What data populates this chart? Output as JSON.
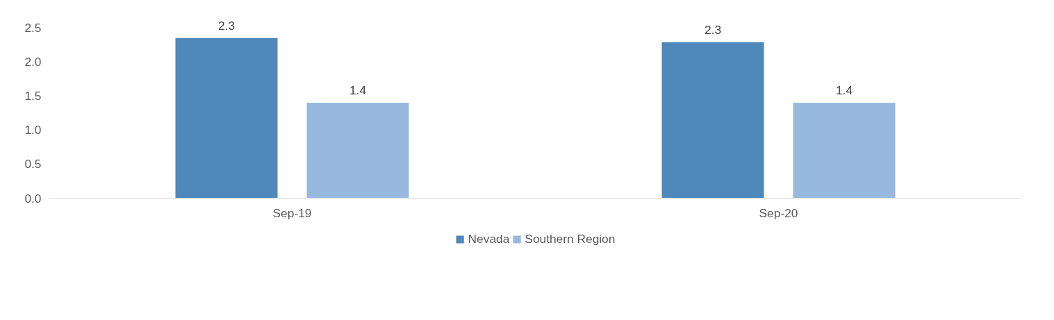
{
  "chart_data": {
    "type": "bar",
    "categories": [
      "Sep-19",
      "Sep-20"
    ],
    "series": [
      {
        "name": "Nevada",
        "color": "#4f88bb",
        "values": [
          2.35,
          2.29
        ],
        "value_labels": [
          "2.3",
          "2.3"
        ]
      },
      {
        "name": "Southern Region",
        "color": "#98b9de",
        "values": [
          1.4,
          1.4
        ],
        "value_labels": [
          "1.4",
          "1.4"
        ]
      }
    ],
    "ylim": [
      0,
      2.5
    ],
    "yticks": [
      {
        "value": 0,
        "label": "0.0"
      },
      0.5,
      {
        "value": 1,
        "label": "1.0"
      },
      1.5,
      {
        "value": 2,
        "label": "2.0"
      },
      2.5
    ],
    "grid": false,
    "legend": "bottom"
  }
}
